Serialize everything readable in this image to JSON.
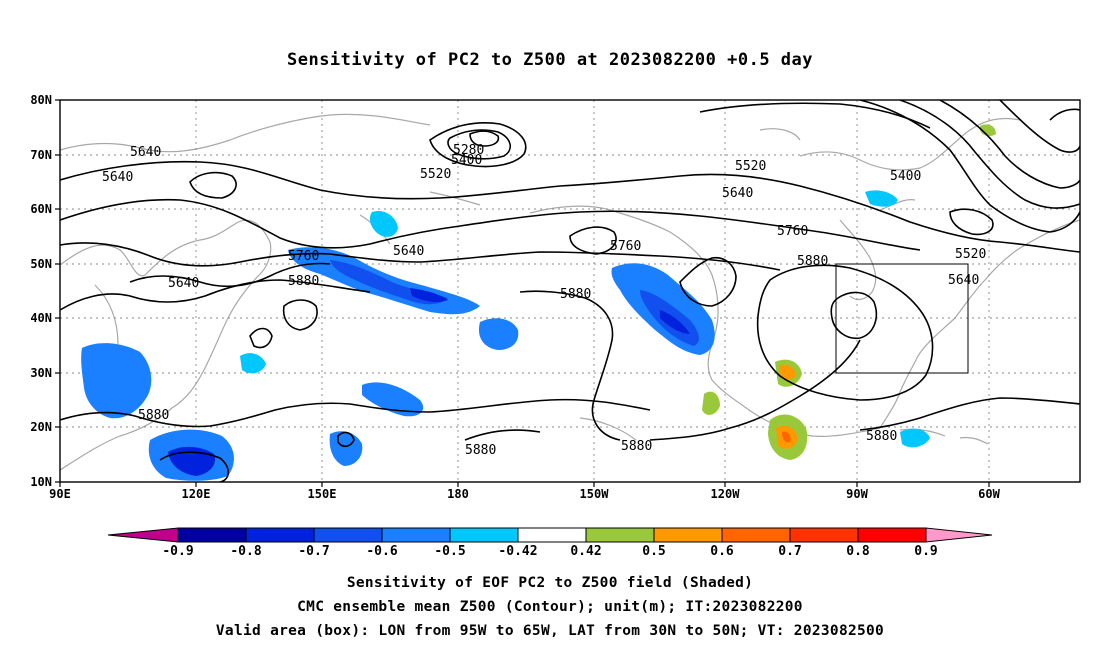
{
  "title": "Sensitivity of PC2 to Z500 at 2023082200 +0.5 day",
  "lat_labels": [
    "80N",
    "70N",
    "60N",
    "50N",
    "40N",
    "30N",
    "20N",
    "10N"
  ],
  "lon_labels": [
    "90E",
    "120E",
    "150E",
    "180",
    "150W",
    "120W",
    "90W",
    "60W"
  ],
  "contour_labels": [
    "5640",
    "5640",
    "5640",
    "5280",
    "5400",
    "5520",
    "5520",
    "5640",
    "5400",
    "5760",
    "5640",
    "5760",
    "5880",
    "5760",
    "5880",
    "5880",
    "5520",
    "5640",
    "5880",
    "5880",
    "5880",
    "5880"
  ],
  "colorbar": {
    "labels": [
      "-0.9",
      "-0.8",
      "-0.7",
      "-0.6",
      "-0.5",
      "-0.42",
      "0.42",
      "0.5",
      "0.6",
      "0.7",
      "0.8",
      "0.9"
    ],
    "colors": [
      "#c0008c",
      "#0000a0",
      "#0022dd",
      "#1150ee",
      "#1a80ff",
      "#00c8ff",
      "#ffffff",
      "#99c93b",
      "#ff9900",
      "#ff6600",
      "#ff3300",
      "#ff0000",
      "#ff99cc"
    ]
  },
  "valid_box": {
    "lon_from": "95W",
    "lon_to": "65W",
    "lat_from": "30N",
    "lat_to": "50N"
  },
  "captions": [
    "Sensitivity of EOF PC2 to Z500 field (Shaded)",
    "CMC ensemble mean Z500 (Contour); unit(m); IT:2023082200",
    "Valid area (box): LON from 95W to 65W, LAT from 30N to 50N; VT: 2023082500"
  ]
}
